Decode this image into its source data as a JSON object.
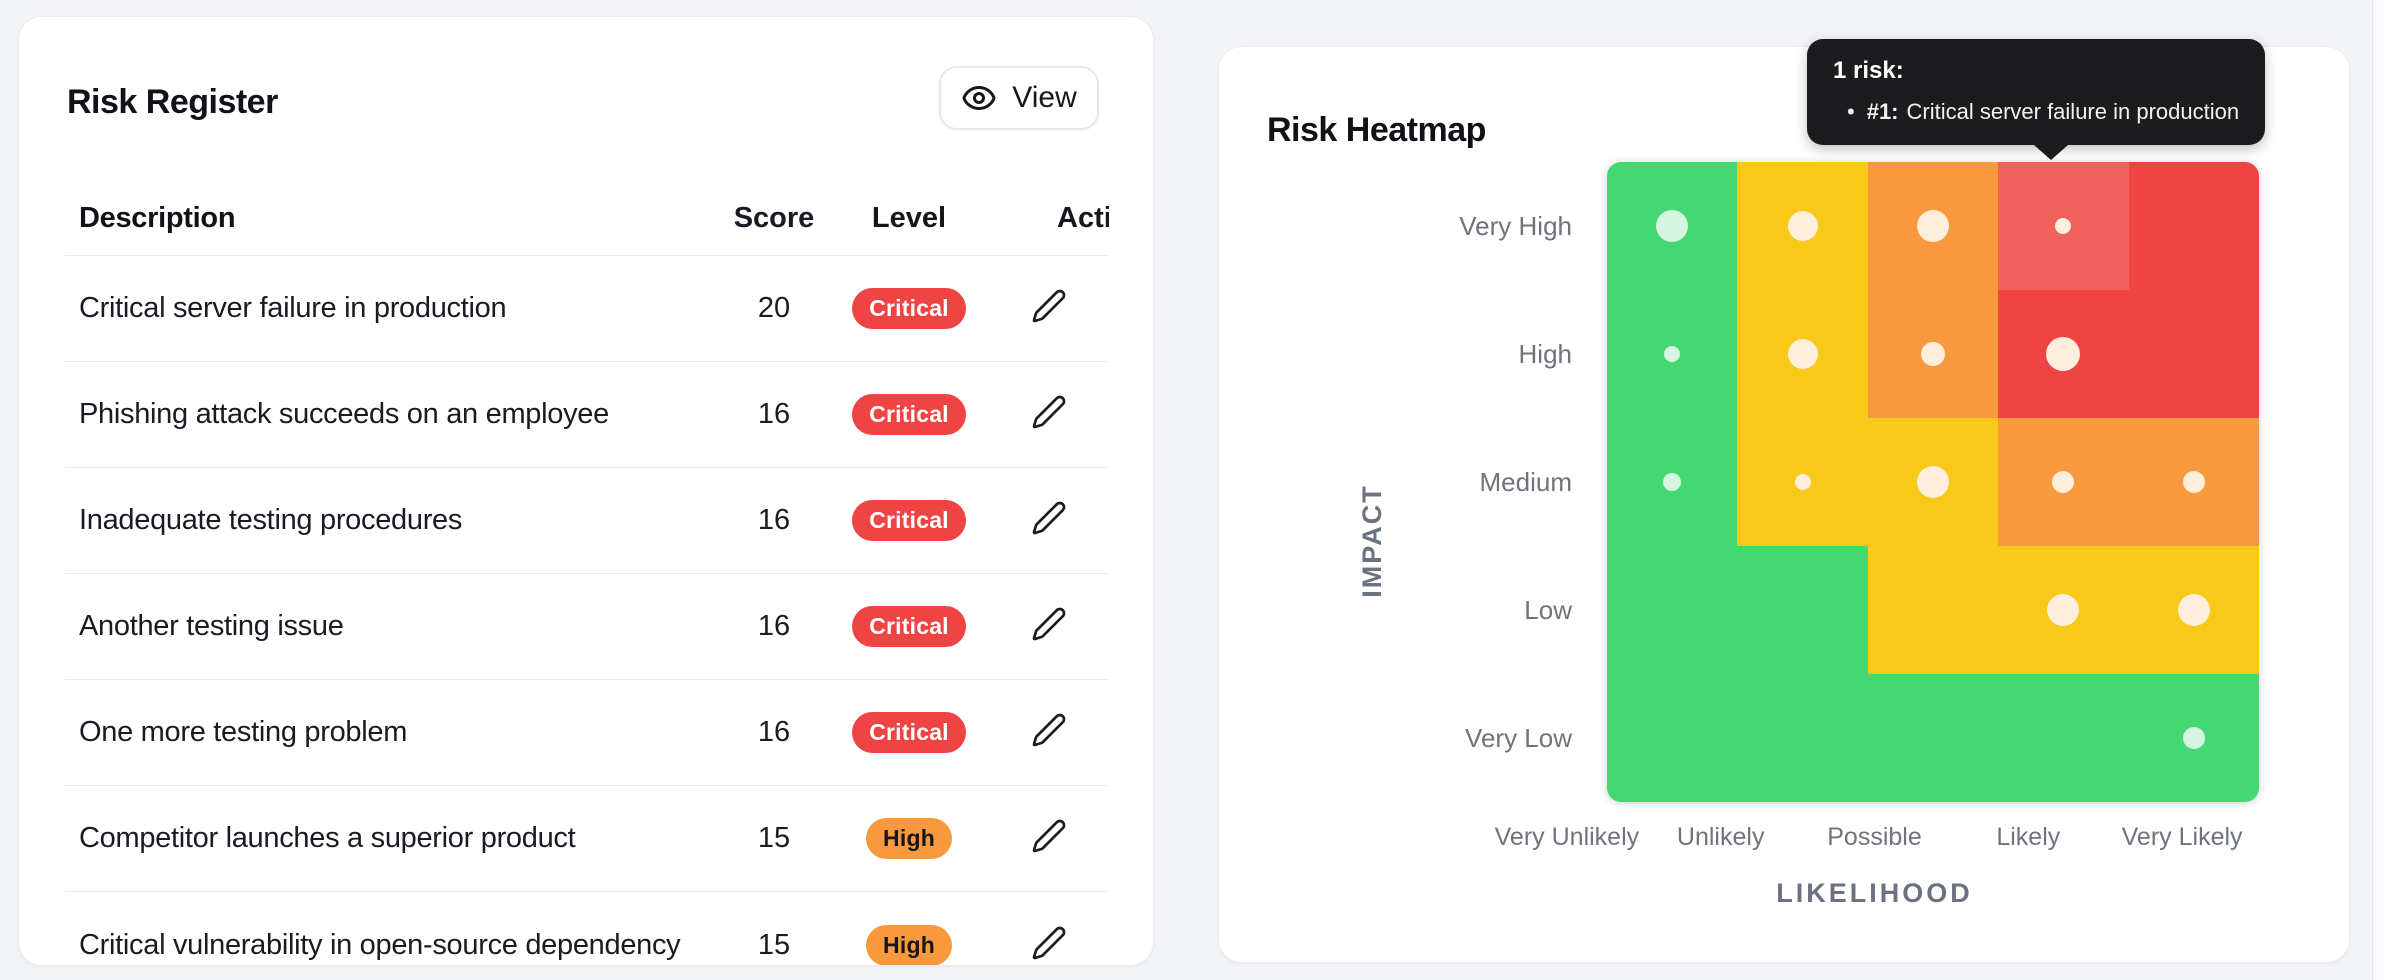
{
  "page": {
    "bg": "#f3f4f6"
  },
  "risk_register": {
    "title": "Risk Register",
    "view_button": {
      "label": "View"
    },
    "table": {
      "headers": {
        "description": "Description",
        "score": "Score",
        "level": "Level",
        "actions": "Actions"
      },
      "rows": [
        {
          "description": "Critical server failure in production",
          "score": "20",
          "level": "Critical"
        },
        {
          "description": "Phishing attack succeeds on an employee",
          "score": "16",
          "level": "Critical"
        },
        {
          "description": "Inadequate testing procedures",
          "score": "16",
          "level": "Critical"
        },
        {
          "description": "Another testing issue",
          "score": "16",
          "level": "Critical"
        },
        {
          "description": "One more testing problem",
          "score": "16",
          "level": "Critical"
        },
        {
          "description": "Competitor launches a superior product",
          "score": "15",
          "level": "High"
        },
        {
          "description": "Critical vulnerability in open-source dependency",
          "score": "15",
          "level": "High"
        }
      ]
    },
    "badge_colors": {
      "Critical": {
        "bg": "#ef4444",
        "text": "#ffffff"
      },
      "High": {
        "bg": "#f8993e",
        "text": "#14161b"
      }
    }
  },
  "risk_heatmap": {
    "title": "Risk Heatmap",
    "tooltip": {
      "title": "1 risk:",
      "bullet_id": "#1:",
      "bullet_text": "Critical server failure in production"
    },
    "x_axis_title": "LIKELIHOOD",
    "y_axis_title": "IMPACT"
  },
  "chart_data": {
    "type": "heatmap",
    "x_categories": [
      "Very Unlikely",
      "Unlikely",
      "Possible",
      "Likely",
      "Very Likely"
    ],
    "y_categories": [
      "Very High",
      "High",
      "Medium",
      "Low",
      "Very Low"
    ],
    "cell_levels": [
      [
        "low",
        "medium",
        "high",
        "critical",
        "critical"
      ],
      [
        "low",
        "medium",
        "high",
        "critical",
        "critical"
      ],
      [
        "low",
        "medium",
        "medium",
        "high",
        "high"
      ],
      [
        "low",
        "low",
        "medium",
        "medium",
        "medium"
      ],
      [
        "low",
        "low",
        "low",
        "low",
        "low"
      ]
    ],
    "highlighted_cell": {
      "row": 0,
      "col": 3,
      "x": "Likely",
      "y": "Very High",
      "risk_count": 1
    },
    "bubbles": [
      {
        "row": 0,
        "col": 0,
        "radius": 16
      },
      {
        "row": 0,
        "col": 1,
        "radius": 15
      },
      {
        "row": 0,
        "col": 2,
        "radius": 16
      },
      {
        "row": 0,
        "col": 3,
        "radius": 8
      },
      {
        "row": 1,
        "col": 0,
        "radius": 8
      },
      {
        "row": 1,
        "col": 1,
        "radius": 15
      },
      {
        "row": 1,
        "col": 2,
        "radius": 12
      },
      {
        "row": 1,
        "col": 3,
        "radius": 17
      },
      {
        "row": 2,
        "col": 0,
        "radius": 9
      },
      {
        "row": 2,
        "col": 1,
        "radius": 8
      },
      {
        "row": 2,
        "col": 2,
        "radius": 16
      },
      {
        "row": 2,
        "col": 3,
        "radius": 11
      },
      {
        "row": 2,
        "col": 4,
        "radius": 11
      },
      {
        "row": 3,
        "col": 3,
        "radius": 16
      },
      {
        "row": 3,
        "col": 4,
        "radius": 16
      },
      {
        "row": 4,
        "col": 4,
        "radius": 11
      }
    ],
    "palette": {
      "low": "#45d872",
      "medium": "#f8c918",
      "high": "#f8993e",
      "critical": "#ef4444",
      "critical_highlight": "#f0605c",
      "dot_on_low": "#d5f5e0",
      "dot_default": "#fdeedd"
    },
    "legend_position": "none",
    "grid": "off"
  }
}
